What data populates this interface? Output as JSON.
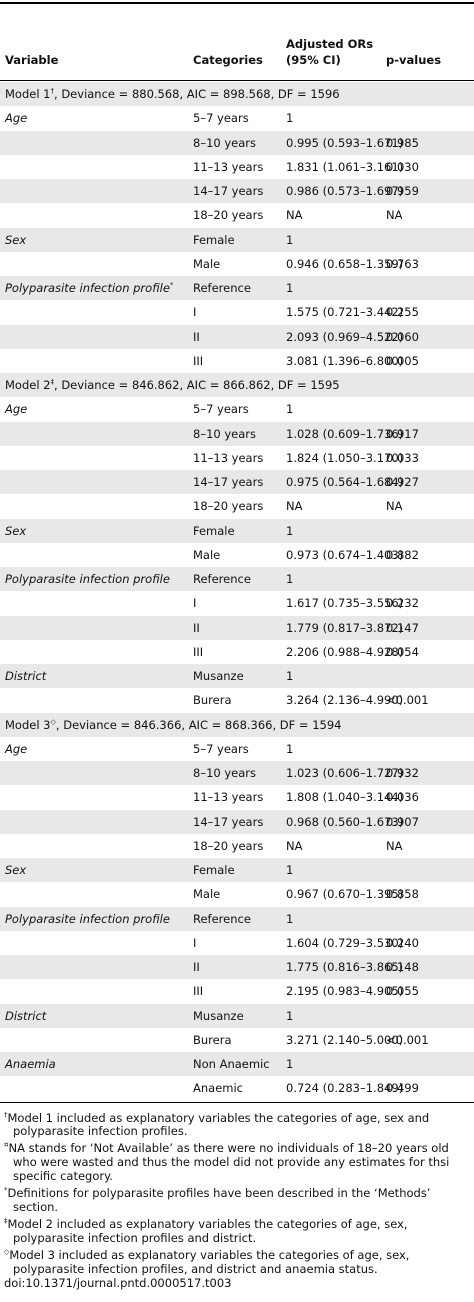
{
  "table": {
    "header": [
      "Variable",
      "Categories",
      "Adjusted ORs (95% CI)",
      "p-values"
    ],
    "sections": [
      {
        "title": "Model 1",
        "mark": "†",
        "stats": ", Deviance = 880.568, AIC = 898.568, DF = 1596",
        "rows": [
          {
            "variable": "Age",
            "category": "5–7 years",
            "or": "1"
          },
          {
            "category": "8–10 years",
            "or": "0.995 (0.593–1.671)",
            "p": "0.985"
          },
          {
            "category": "11–13 years",
            "or": "1.831 (1.061–3.161)",
            "p": "0.030"
          },
          {
            "category": "14–17 years",
            "or": "0.986 (0.573–1.697)",
            "p": "0.959"
          },
          {
            "category": "18–20 years",
            "or": "NA",
            "p": "NA"
          },
          {
            "variable": "Sex",
            "category": "Female",
            "or": "1"
          },
          {
            "category": "Male",
            "or": "0.946 (0.658–1.359)",
            "p": "0.763"
          },
          {
            "variable": "Polyparasite infection profile",
            "variable_mark": "*",
            "category": "Reference",
            "or": "1"
          },
          {
            "category": "I",
            "or": "1.575 (0.721–3.442)",
            "p": "0.255"
          },
          {
            "category": "II",
            "or": "2.093 (0.969–4.522)",
            "p": "0.060"
          },
          {
            "category": "III",
            "or": "3.081 (1.396–6.800)",
            "p": "0.005"
          }
        ]
      },
      {
        "title": "Model 2",
        "mark": "‡",
        "stats": ", Deviance = 846.862, AIC = 866.862, DF = 1595",
        "rows": [
          {
            "variable": "Age",
            "category": "5–7 years",
            "or": "1"
          },
          {
            "category": "8–10 years",
            "or": "1.028 (0.609–1.736)",
            "p": "0.917"
          },
          {
            "category": "11–13 years",
            "or": "1.824 (1.050–3.170)",
            "p": "0.033"
          },
          {
            "category": "14–17 years",
            "or": "0.975 (0.564–1.684)",
            "p": "0.927"
          },
          {
            "category": "18–20 years",
            "or": "NA",
            "p": "NA"
          },
          {
            "variable": "Sex",
            "category": "Female",
            "or": "1"
          },
          {
            "category": "Male",
            "or": "0.973 (0.674–1.403)",
            "p": "0.882"
          },
          {
            "variable": "Polyparasite infection profile",
            "category": "Reference",
            "or": "1"
          },
          {
            "category": "I",
            "or": "1.617 (0.735–3.556)",
            "p": "0.232"
          },
          {
            "category": "II",
            "or": "1.779 (0.817–3.872)",
            "p": "0.147"
          },
          {
            "category": "III",
            "or": "2.206 (0.988–4.928)",
            "p": "0.054"
          },
          {
            "variable": "District",
            "category": "Musanze",
            "or": "1"
          },
          {
            "category": "Burera",
            "or": "3.264 (2.136–4.990)",
            "p": "<0.001"
          }
        ]
      },
      {
        "title": "Model 3",
        "mark": "◇",
        "stats": ", Deviance = 846.366, AIC = 868.366, DF = 1594",
        "rows": [
          {
            "variable": "Age",
            "category": "5–7 years",
            "or": "1"
          },
          {
            "category": "8–10 years",
            "or": "1.023 (0.606–1.727)",
            "p": "0.932"
          },
          {
            "category": "11–13 years",
            "or": "1.808 (1.040–3.144)",
            "p": "0.036"
          },
          {
            "category": "14–17 years",
            "or": "0.968 (0.560–1.673)",
            "p": "0.907"
          },
          {
            "category": "18–20 years",
            "or": "NA",
            "p": "NA"
          },
          {
            "variable": "Sex",
            "category": "Female",
            "or": "1"
          },
          {
            "category": "Male",
            "or": "0.967 (0.670–1.395)",
            "p": "0.858"
          },
          {
            "variable": "Polyparasite infection profile",
            "category": "Reference",
            "or": "1"
          },
          {
            "category": "I",
            "or": "1.604 (0.729–3.530)",
            "p": "0.240"
          },
          {
            "category": "II",
            "or": "1.775 (0.816–3.865)",
            "p": "0.148"
          },
          {
            "category": "III",
            "or": "2.195 (0.983–4.905)",
            "p": "0.055"
          },
          {
            "variable": "District",
            "category": "Musanze",
            "or": "1"
          },
          {
            "category": "Burera",
            "or": "3.271 (2.140–5.000)",
            "p": "<0.001"
          },
          {
            "variable": "Anaemia",
            "category": "Non Anaemic",
            "or": "1"
          },
          {
            "category": "Anaemic",
            "or": "0.724 (0.283–1.849)",
            "p": "0.499"
          }
        ]
      }
    ],
    "footnotes": [
      {
        "mark": "†",
        "text": "Model 1 included as explanatory variables the categories of age, sex and polyparasite infection profiles."
      },
      {
        "mark": "¤",
        "text": "NA stands for ‘Not Available’ as there were no individuals of 18–20 years old who were wasted and thus the model did not provide any estimates for thsi specific category."
      },
      {
        "mark": "*",
        "text": "Definitions for polyparasite profiles have been described in the ‘Methods’ section."
      },
      {
        "mark": "‡",
        "text": "Model 2 included as explanatory variables the categories of age, sex, polyparasite infection profiles and district."
      },
      {
        "mark": "◇",
        "text": "Model 3 included as explanatory variables the categories of age, sex, polyparasite infection profiles, and district and anaemia status."
      }
    ],
    "doi": "doi:10.1371/journal.pntd.0000517.t003"
  }
}
